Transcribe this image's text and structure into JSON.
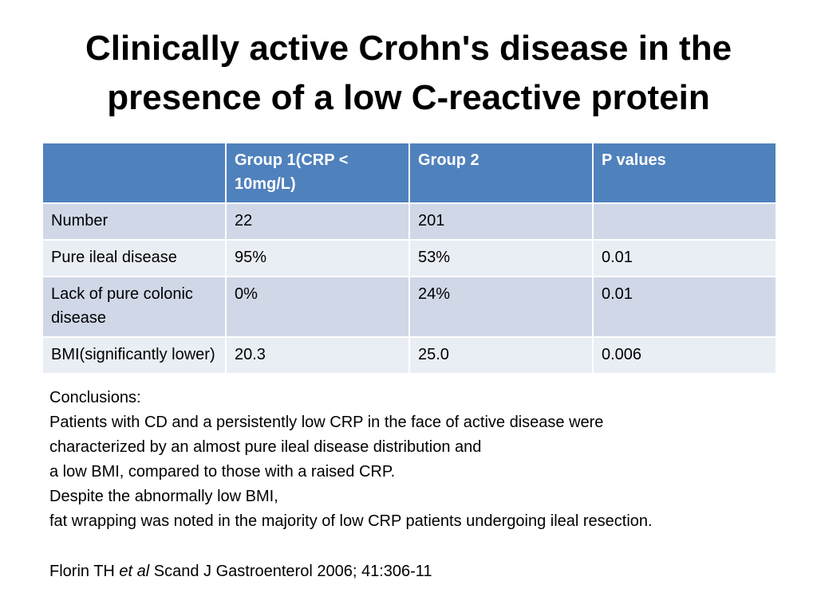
{
  "slide": {
    "title": "Clinically active Crohn's disease in the presence of a low C-reactive protein"
  },
  "table": {
    "headers": [
      "",
      "Group 1(CRP < 10mg/L)",
      "Group 2",
      "P values"
    ],
    "rows": [
      [
        "Number",
        "22",
        "201",
        ""
      ],
      [
        "Pure ileal disease",
        "95%",
        "53%",
        "0.01"
      ],
      [
        "Lack of pure colonic disease",
        "0%",
        "24%",
        "0.01"
      ],
      [
        "BMI(significantly lower)",
        "20.3",
        "25.0",
        "0.006"
      ]
    ]
  },
  "conclusions": {
    "heading": "Conclusions:",
    "lines": [
      "Patients with CD and a persistently low CRP in the face of active disease were",
      "characterized by an almost pure ileal disease distribution and",
      "a low BMI, compared to those with a raised CRP.",
      "Despite the abnormally low BMI,",
      "fat wrapping was noted in the majority of low CRP patients undergoing ileal resection."
    ]
  },
  "citation": {
    "author": "Florin TH ",
    "etal": "et al",
    "journal": " Scand J Gastroenterol 2006; 41:306-11"
  }
}
